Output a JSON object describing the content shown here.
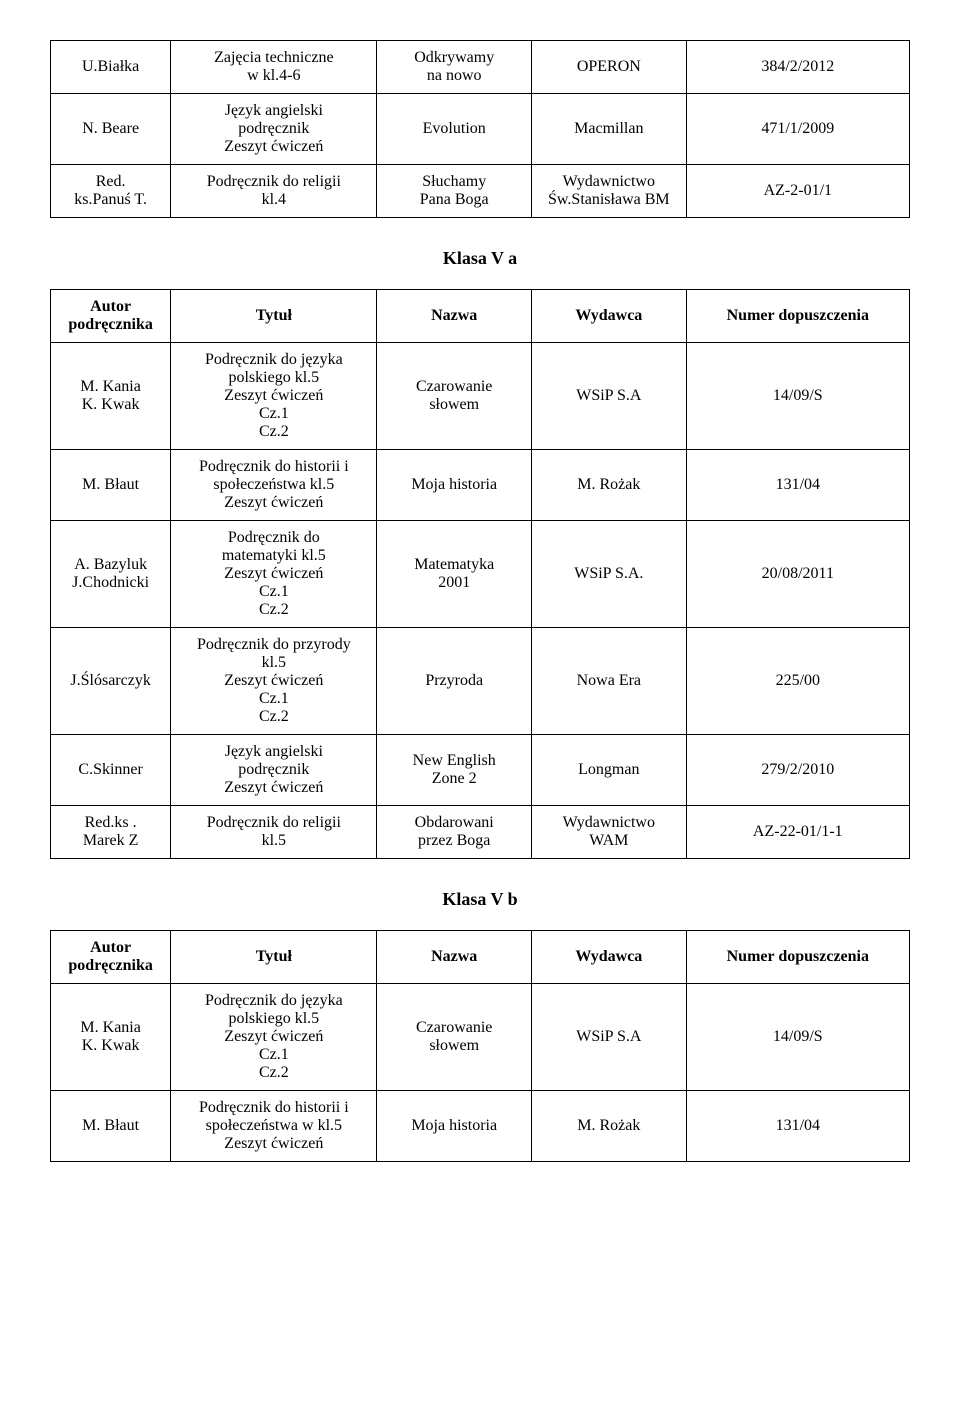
{
  "table1": {
    "rows": [
      {
        "author": "U.Białka",
        "title": "Zajęcia techniczne\nw kl.4-6",
        "name": "Odkrywamy\nna nowo",
        "publisher": "OPERON",
        "number": "384/2/2012"
      },
      {
        "author": "N. Beare",
        "title": "Język angielski\npodręcznik\nZeszyt ćwiczeń",
        "name": "Evolution",
        "publisher": "Macmillan",
        "number": "471/1/2009"
      },
      {
        "author": "Red.\nks.Panuś T.",
        "title": "Podręcznik do religii\nkl.4",
        "name": "Słuchamy\nPana Boga",
        "publisher": "Wydawnictwo\nŚw.Stanisława BM",
        "number": "AZ-2-01/1"
      }
    ]
  },
  "section2": {
    "heading": "Klasa V a"
  },
  "table2": {
    "headers": {
      "author": "Autor\npodręcznika",
      "title": "Tytuł",
      "name": "Nazwa",
      "publisher": "Wydawca",
      "number": "Numer dopuszczenia"
    },
    "rows": [
      {
        "author": "M. Kania\nK. Kwak",
        "title": "Podręcznik do języka\npolskiego kl.5\nZeszyt ćwiczeń\nCz.1\nCz.2",
        "name": "Czarowanie\nsłowem",
        "publisher": "WSiP S.A",
        "number": "14/09/S"
      },
      {
        "author": "M. Błaut",
        "title": "Podręcznik do historii i\nspołeczeństwa kl.5\nZeszyt ćwiczeń",
        "name": "Moja historia",
        "publisher": "M. Rożak",
        "number": "131/04"
      },
      {
        "author": "A. Bazyluk\nJ.Chodnicki",
        "title": "Podręcznik do\nmatematyki kl.5\nZeszyt ćwiczeń\nCz.1\nCz.2",
        "name": "Matematyka\n2001",
        "publisher": "WSiP S.A.",
        "number": "20/08/2011"
      },
      {
        "author": "J.Ślósarczyk",
        "title": "Podręcznik do przyrody\nkl.5\nZeszyt ćwiczeń\nCz.1\nCz.2",
        "name": "Przyroda",
        "publisher": "Nowa Era",
        "number": "225/00"
      },
      {
        "author": "C.Skinner",
        "title": "Język angielski\npodręcznik\nZeszyt ćwiczeń",
        "name": "New English\nZone 2",
        "publisher": "Longman",
        "number": "279/2/2010"
      },
      {
        "author": "Red.ks .\nMarek Z",
        "title": "Podręcznik do religii\nkl.5",
        "name": "Obdarowani\nprzez Boga",
        "publisher": "Wydawnictwo\nWAM",
        "number": "AZ-22-01/1-1"
      }
    ]
  },
  "section3": {
    "heading": "Klasa V b"
  },
  "table3": {
    "headers": {
      "author": "Autor\npodręcznika",
      "title": "Tytuł",
      "name": "Nazwa",
      "publisher": "Wydawca",
      "number": "Numer dopuszczenia"
    },
    "rows": [
      {
        "author": "M. Kania\nK. Kwak",
        "title": "Podręcznik do języka\npolskiego kl.5\nZeszyt ćwiczeń\nCz.1\nCz.2",
        "name": "Czarowanie\nsłowem",
        "publisher": "WSiP S.A",
        "number": "14/09/S"
      },
      {
        "author": "M. Błaut",
        "title": "Podręcznik do historii i\nspołeczeństwa w kl.5\nZeszyt ćwiczeń",
        "name": "Moja historia",
        "publisher": "M. Rożak",
        "number": "131/04"
      }
    ]
  }
}
